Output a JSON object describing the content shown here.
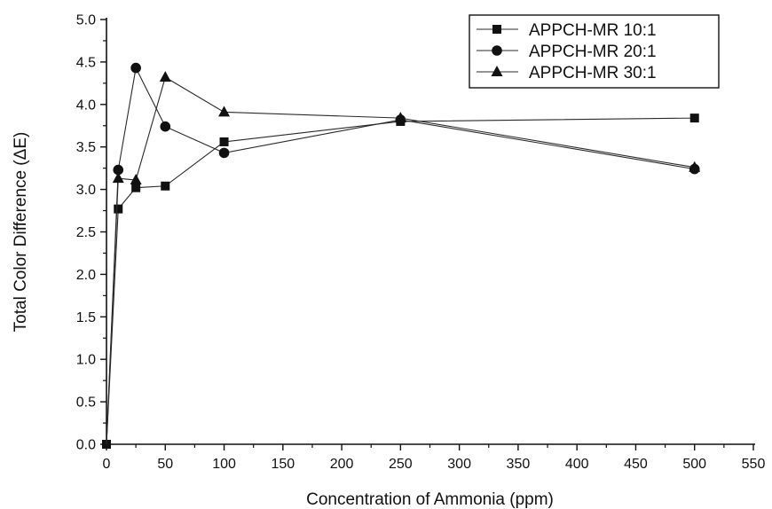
{
  "chart_data": {
    "type": "line",
    "title": "",
    "xlabel": "Concentration of Ammonia (ppm)",
    "ylabel": "Total Color Difference (ΔE)",
    "xlim": [
      0,
      550
    ],
    "ylim": [
      0,
      5
    ],
    "x_ticks": [
      "0",
      "50",
      "100",
      "150",
      "200",
      "250",
      "300",
      "350",
      "400",
      "450",
      "500",
      "550"
    ],
    "y_ticks": [
      "0.0",
      "0.5",
      "1.0",
      "1.5",
      "2.0",
      "2.5",
      "3.0",
      "3.5",
      "4.0",
      "4.5",
      "5.0"
    ],
    "grid": false,
    "legend_position": "top-right",
    "series": [
      {
        "name": "APPCH-MR 10:1",
        "marker": "square",
        "x": [
          0,
          10,
          25,
          50,
          100,
          250,
          500
        ],
        "y": [
          0.0,
          2.77,
          3.02,
          3.04,
          3.56,
          3.8,
          3.84
        ]
      },
      {
        "name": "APPCH-MR 20:1",
        "marker": "circle",
        "x": [
          0,
          10,
          25,
          50,
          100,
          250,
          500
        ],
        "y": [
          0.0,
          3.23,
          4.43,
          3.74,
          3.43,
          3.82,
          3.24
        ]
      },
      {
        "name": "APPCH-MR 30:1",
        "marker": "triangle",
        "x": [
          0,
          10,
          25,
          50,
          100,
          250,
          500
        ],
        "y": [
          0.0,
          3.13,
          3.11,
          4.32,
          3.91,
          3.84,
          3.26
        ]
      }
    ],
    "colors": {
      "line": "#2a2a2a",
      "marker": "#111111",
      "axis": "#111111"
    }
  }
}
